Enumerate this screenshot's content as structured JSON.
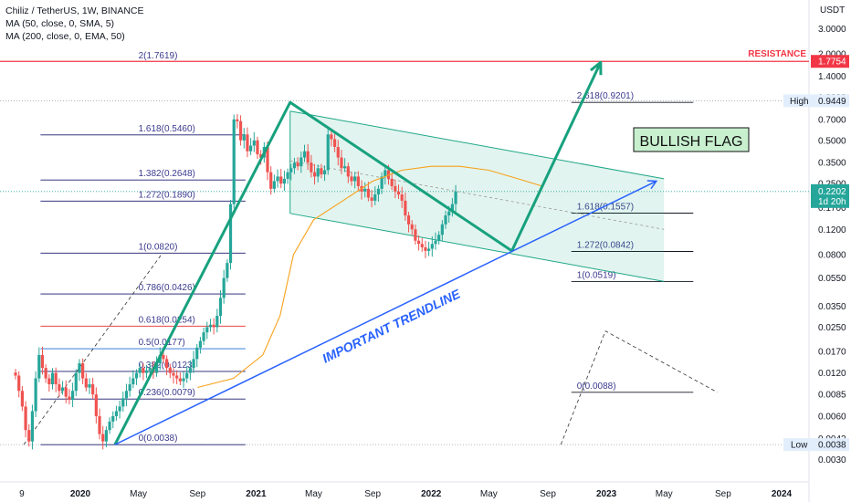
{
  "header": {
    "symbol_line": "Chiliz / TetherUS, 1W, BINANCE",
    "ma1": "MA (50, close, 0, SMA, 5)",
    "ma2": "MA (200, close, 0, EMA, 50)"
  },
  "colors": {
    "up": "#26a69a",
    "down": "#ef5350",
    "ma": "#f7a21b",
    "channel": "#1ea787",
    "impulse": "#17a17e",
    "trendline": "#2962ff",
    "resistance": "#f23645",
    "fib": "#1a1a6e"
  },
  "chart_data": {
    "type": "candlestick",
    "y_scale": "log",
    "y_unit": "USDT",
    "y_range": [
      0.0028,
      3.2
    ],
    "y_ticks": [
      "3.0000",
      "2.0000",
      "1.4000",
      "1.0000",
      "0.7000",
      "0.5000",
      "0.3500",
      "0.2500",
      "0.1700",
      "0.1200",
      "0.0800",
      "0.0550",
      "0.0350",
      "0.0250",
      "0.0170",
      "0.0120",
      "0.0085",
      "0.0060",
      "0.0042",
      "0.0030"
    ],
    "x_ticks": [
      {
        "label": "9",
        "date": "2019-09-01",
        "year": false
      },
      {
        "label": "2020",
        "date": "2020-01-01",
        "year": true
      },
      {
        "label": "May",
        "date": "2020-05-01",
        "year": false
      },
      {
        "label": "Sep",
        "date": "2020-09-01",
        "year": false
      },
      {
        "label": "2021",
        "date": "2021-01-01",
        "year": true
      },
      {
        "label": "May",
        "date": "2021-05-01",
        "year": false
      },
      {
        "label": "Sep",
        "date": "2021-09-01",
        "year": false
      },
      {
        "label": "2022",
        "date": "2022-01-01",
        "year": true
      },
      {
        "label": "May",
        "date": "2022-05-01",
        "year": false
      },
      {
        "label": "Sep",
        "date": "2022-09-01",
        "year": false
      },
      {
        "label": "2023",
        "date": "2023-01-01",
        "year": true
      },
      {
        "label": "May",
        "date": "2023-05-01",
        "year": false
      },
      {
        "label": "Sep",
        "date": "2023-09-01",
        "year": false
      },
      {
        "label": "2024",
        "date": "2024-01-01",
        "year": true
      }
    ],
    "candles_close": [
      0.0115,
      0.009,
      0.007,
      0.0048,
      0.004,
      0.0065,
      0.011,
      0.016,
      0.013,
      0.011,
      0.01,
      0.012,
      0.01,
      0.009,
      0.0095,
      0.0082,
      0.0078,
      0.009,
      0.012,
      0.014,
      0.011,
      0.0095,
      0.01,
      0.0085,
      0.006,
      0.0045,
      0.004,
      0.0048,
      0.0055,
      0.006,
      0.0065,
      0.007,
      0.008,
      0.009,
      0.01,
      0.011,
      0.012,
      0.013,
      0.012,
      0.0125,
      0.013,
      0.012,
      0.014,
      0.016,
      0.015,
      0.013,
      0.012,
      0.0115,
      0.011,
      0.0105,
      0.011,
      0.012,
      0.013,
      0.015,
      0.018,
      0.02,
      0.023,
      0.025,
      0.026,
      0.025,
      0.03,
      0.04,
      0.055,
      0.07,
      0.18,
      0.7,
      0.68,
      0.5,
      0.55,
      0.42,
      0.46,
      0.5,
      0.4,
      0.38,
      0.45,
      0.3,
      0.23,
      0.26,
      0.28,
      0.25,
      0.27,
      0.3,
      0.32,
      0.35,
      0.33,
      0.38,
      0.42,
      0.35,
      0.3,
      0.28,
      0.32,
      0.29,
      0.31,
      0.55,
      0.51,
      0.45,
      0.38,
      0.32,
      0.33,
      0.28,
      0.26,
      0.28,
      0.24,
      0.22,
      0.23,
      0.2,
      0.19,
      0.21,
      0.23,
      0.28,
      0.31,
      0.27,
      0.24,
      0.22,
      0.21,
      0.19,
      0.15,
      0.13,
      0.12,
      0.1,
      0.095,
      0.09,
      0.085,
      0.088,
      0.095,
      0.1,
      0.11,
      0.13,
      0.15,
      0.16,
      0.18,
      0.22
    ],
    "candles_start": "2019-08-19",
    "ma_sma50": [
      {
        "date": "2020-09-01",
        "value": 0.0095
      },
      {
        "date": "2020-11-15",
        "value": 0.011
      },
      {
        "date": "2021-01-15",
        "value": 0.016
      },
      {
        "date": "2021-02-20",
        "value": 0.03
      },
      {
        "date": "2021-03-20",
        "value": 0.08
      },
      {
        "date": "2021-05-01",
        "value": 0.14
      },
      {
        "date": "2021-07-01",
        "value": 0.19
      },
      {
        "date": "2021-09-01",
        "value": 0.26
      },
      {
        "date": "2021-11-01",
        "value": 0.31
      },
      {
        "date": "2022-01-01",
        "value": 0.33
      },
      {
        "date": "2022-03-01",
        "value": 0.33
      },
      {
        "date": "2022-05-01",
        "value": 0.31
      },
      {
        "date": "2022-07-01",
        "value": 0.27
      },
      {
        "date": "2022-08-20",
        "value": 0.24
      }
    ],
    "fib_levels_left": [
      {
        "label": "2(1.7619)",
        "value": 1.7619,
        "color": "#1a1a6e"
      },
      {
        "label": "1.618(0.5460)",
        "value": 0.546,
        "color": "#1a1a6e"
      },
      {
        "label": "1.382(0.2648)",
        "value": 0.2648,
        "color": "#1a1a6e"
      },
      {
        "label": "1.272(0.1890)",
        "value": 0.189,
        "color": "#1a1a6e"
      },
      {
        "label": "1(0.0820)",
        "value": 0.082,
        "color": "#1a1a6e"
      },
      {
        "label": "0.786(0.0426)",
        "value": 0.0426,
        "color": "#1a1a6e"
      },
      {
        "label": "0.618(0.0254)",
        "value": 0.0254,
        "color": "#e84545"
      },
      {
        "label": "0.5(0.0177)",
        "value": 0.0177,
        "color": "#1e6fd9"
      },
      {
        "label": "0.382(0.0123)",
        "value": 0.0123,
        "color": "#1a1a6e"
      },
      {
        "label": "0.236(0.0079)",
        "value": 0.0079,
        "color": "#1a1a6e"
      },
      {
        "label": "0(0.0038)",
        "value": 0.0038,
        "color": "#1a1a6e"
      }
    ],
    "fib_levels_right": [
      {
        "label": "2.618(0.9201)",
        "value": 0.9201
      },
      {
        "label": "1.618(0.1557)",
        "value": 0.1557
      },
      {
        "label": "1.272(0.0842)",
        "value": 0.0842
      },
      {
        "label": "1(0.0519)",
        "value": 0.0519
      },
      {
        "label": "0(0.0088)",
        "value": 0.0088
      }
    ],
    "annotations": {
      "bullish_flag": "BULLISH FLAG",
      "trendline": "IMPORTANT TRENDLINE",
      "resistance": "RESISTANCE"
    },
    "price_tags": {
      "resistance": {
        "value": "1.7754",
        "price": 1.7754
      },
      "high": {
        "label": "High",
        "value": "0.9449",
        "price": 0.9449
      },
      "current": {
        "value": "0.2202",
        "time": "1d 20h",
        "price": 0.2202
      },
      "low": {
        "label": "Low",
        "value": "0.0038",
        "price": 0.0038
      }
    }
  }
}
